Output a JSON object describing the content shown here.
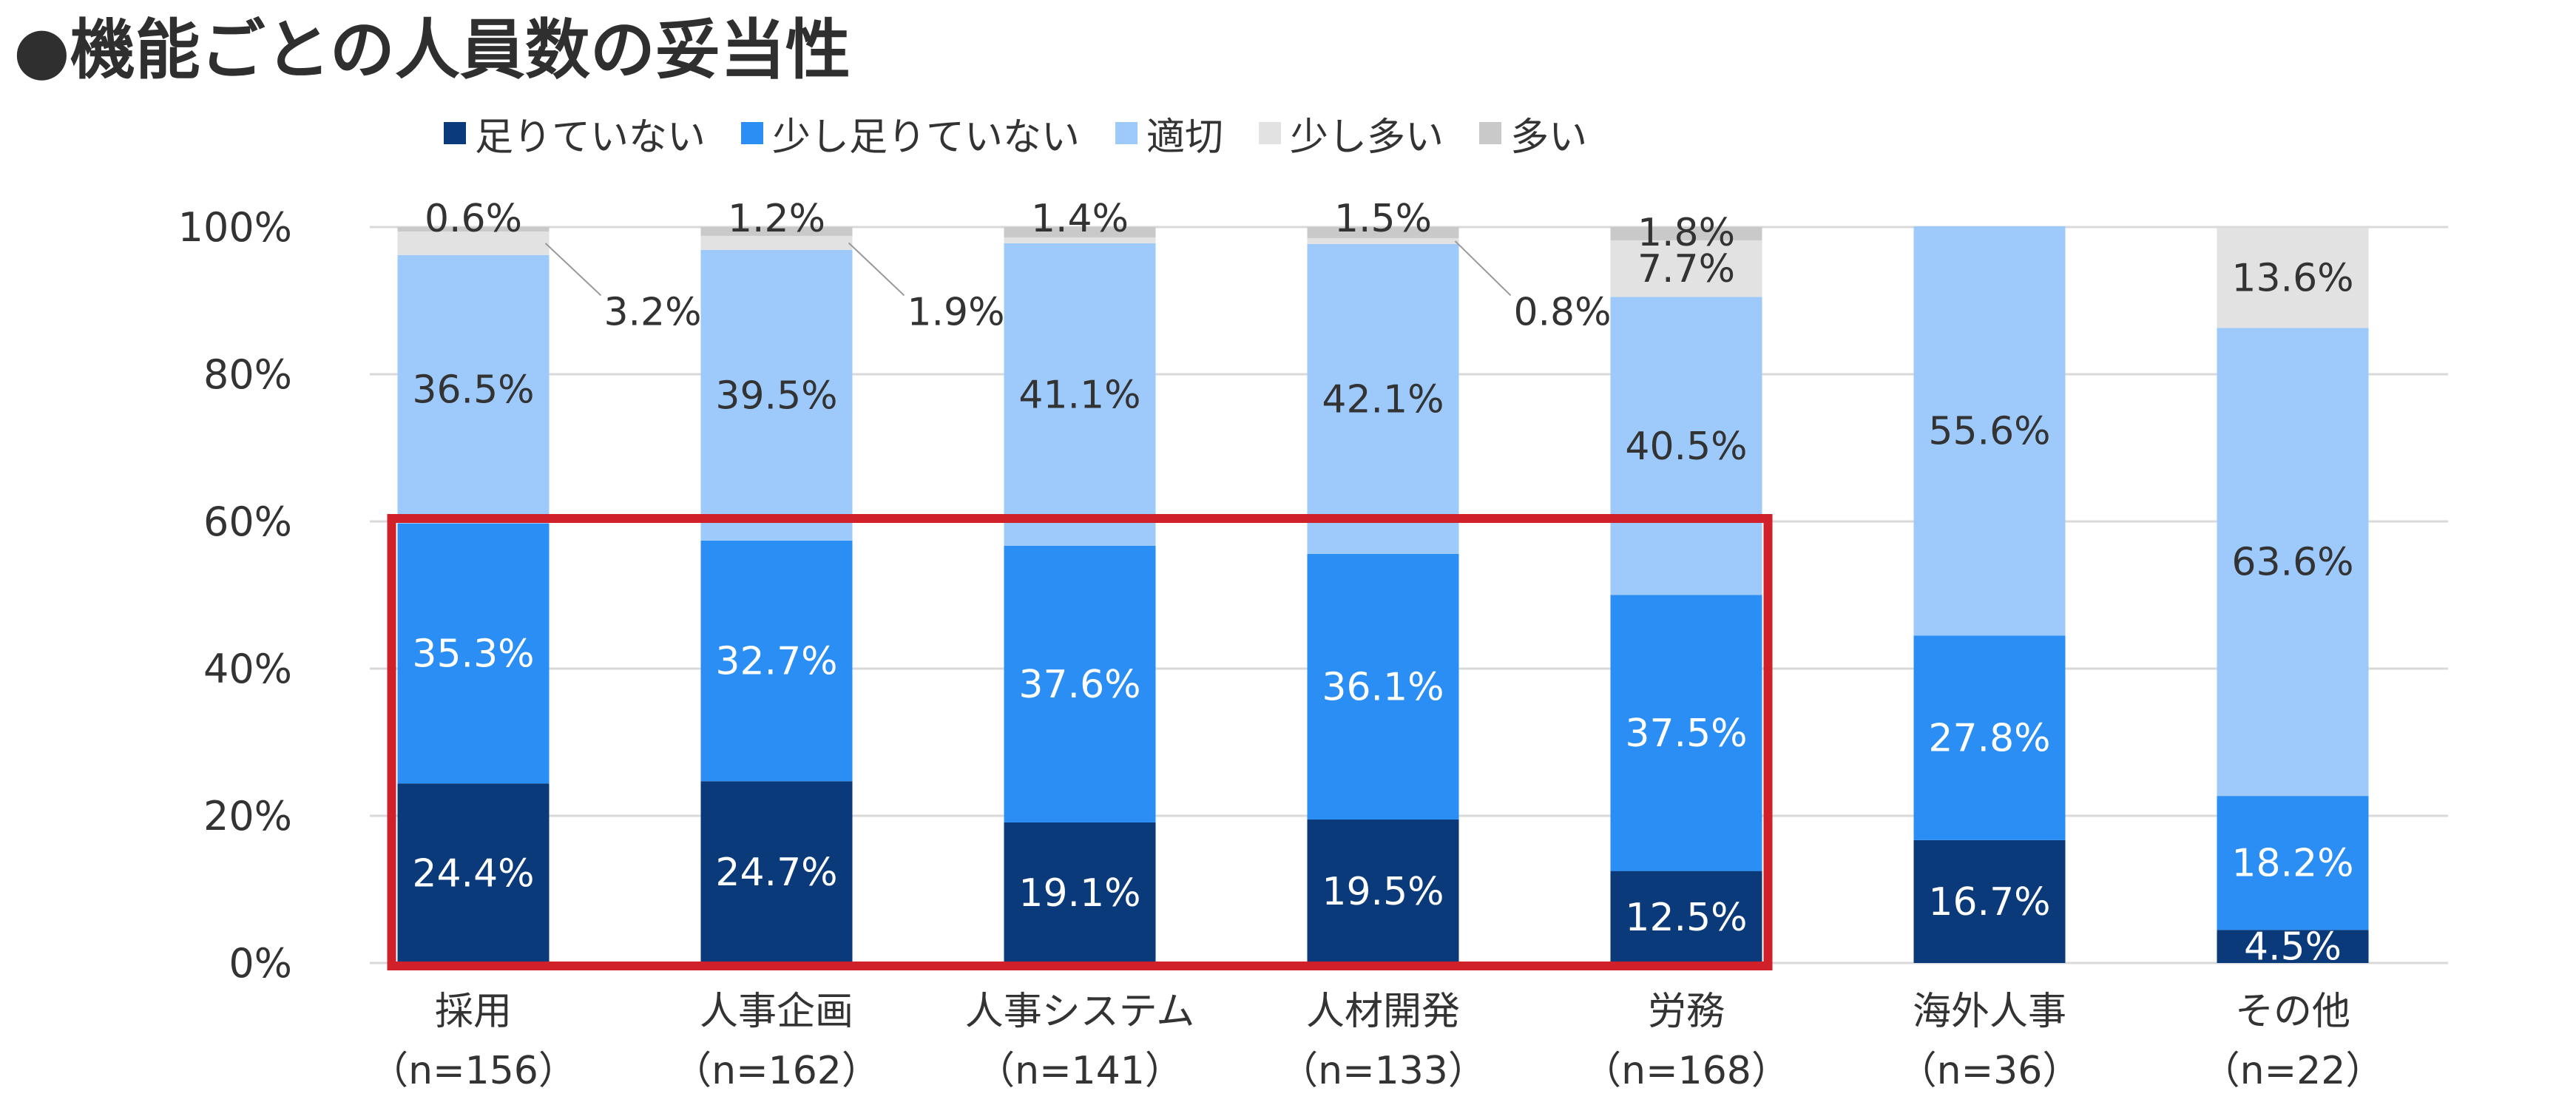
{
  "title": "●機能ごとの人員数の妥当性",
  "colors": {
    "not_enough": "#0a3a7a",
    "slightly_not_enough": "#2a8ef5",
    "appropriate": "#9ec9fb",
    "slightly_many": "#e2e2e2",
    "many": "#c9c9c9",
    "highlight": "#d0202a",
    "grid": "#d9d9d9"
  },
  "chart_data": {
    "type": "bar",
    "stacked": true,
    "ylim": [
      0,
      100
    ],
    "yticks": [
      "0%",
      "20%",
      "40%",
      "60%",
      "80%",
      "100%"
    ],
    "grid": true,
    "legend_position": "top",
    "categories": [
      {
        "name": "採用",
        "n": "（n=156）"
      },
      {
        "name": "人事企画",
        "n": "（n=162）"
      },
      {
        "name": "人事システム",
        "n": "（n=141）"
      },
      {
        "name": "人材開発",
        "n": "（n=133）"
      },
      {
        "name": "労務",
        "n": "（n=168）"
      },
      {
        "name": "海外人事",
        "n": "（n=36）"
      },
      {
        "name": "その他",
        "n": "（n=22）"
      }
    ],
    "series": [
      {
        "name": "足りていない",
        "color_key": "not_enough",
        "values": [
          24.4,
          24.7,
          19.1,
          19.5,
          12.5,
          16.7,
          4.5
        ],
        "labels": [
          "24.4%",
          "24.7%",
          "19.1%",
          "19.5%",
          "12.5%",
          "16.7%",
          "4.5%"
        ]
      },
      {
        "name": "少し足りていない",
        "color_key": "slightly_not_enough",
        "values": [
          35.3,
          32.7,
          37.6,
          36.1,
          37.5,
          27.8,
          18.2
        ],
        "labels": [
          "35.3%",
          "32.7%",
          "37.6%",
          "36.1%",
          "37.5%",
          "27.8%",
          "18.2%"
        ]
      },
      {
        "name": "適切",
        "color_key": "appropriate",
        "values": [
          36.5,
          39.5,
          41.1,
          42.1,
          40.5,
          55.6,
          63.6
        ],
        "labels": [
          "36.5%",
          "39.5%",
          "41.1%",
          "42.1%",
          "40.5%",
          "55.6%",
          "63.6%"
        ]
      },
      {
        "name": "少し多い",
        "color_key": "slightly_many",
        "values": [
          3.2,
          1.9,
          0.8,
          0.8,
          7.7,
          0,
          13.6
        ],
        "labels": [
          "3.2%",
          "1.9%",
          "",
          "0.8%",
          "7.7%",
          "",
          "13.6%"
        ]
      },
      {
        "name": "多い",
        "color_key": "many",
        "values": [
          0.6,
          1.2,
          1.4,
          1.5,
          1.8,
          0,
          0
        ],
        "labels": [
          "0.6%",
          "1.2%",
          "1.4%",
          "1.5%",
          "1.8%",
          "",
          ""
        ]
      }
    ],
    "highlight_box": {
      "from_category": 0,
      "to_category": 4,
      "from_value": 0,
      "to_value": 60
    }
  }
}
